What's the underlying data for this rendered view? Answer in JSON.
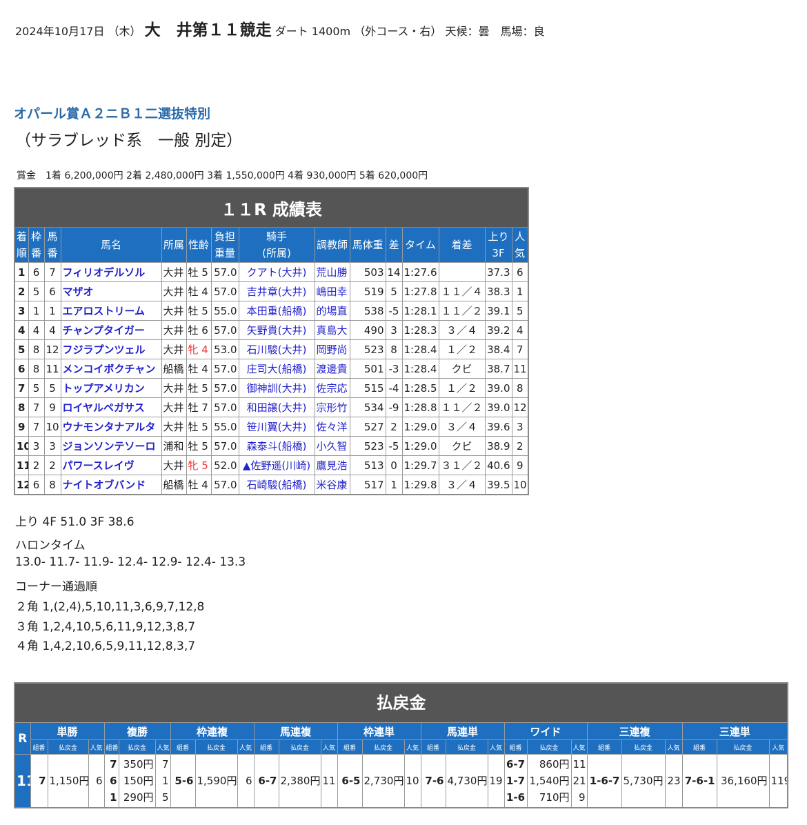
{
  "header": {
    "date": "2024年10月17日 （木）",
    "track_race": "大　井第１１競走",
    "course": "ダート 1400m （外コース・右） 天候：曇　馬場：良"
  },
  "race": {
    "name": "オパール賞Ａ２ニＢ１二選抜特別",
    "class": "（サラブレッド系　一般 別定）",
    "prize": "賞金　1着 6,200,000円  2着 2,480,000円  3着 1,550,000円  4着 930,000円  5着 620,000円"
  },
  "results": {
    "title": "１１R 成績表",
    "headers": [
      "着\n順",
      "枠\n番",
      "馬\n番",
      "馬名",
      "所属",
      "性齢",
      "負担\n重量",
      "騎手\n(所属)",
      "調教師",
      "馬体重",
      "差",
      "タイム",
      "着差",
      "上り\n3F",
      "人\n気"
    ],
    "rows": [
      [
        "1",
        "6",
        "7",
        "フィリオデルソル",
        "大井",
        "牡 5",
        "57.0",
        "クアト(大井)",
        "荒山勝",
        "503",
        "14",
        "1:27.6",
        "",
        "37.3",
        "6"
      ],
      [
        "2",
        "5",
        "6",
        "マザオ",
        "大井",
        "牡 4",
        "57.0",
        "吉井章(大井)",
        "嶋田幸",
        "519",
        "5",
        "1:27.8",
        "１１／４",
        "38.3",
        "1"
      ],
      [
        "3",
        "1",
        "1",
        "エアロストリーム",
        "大井",
        "牡 5",
        "55.0",
        "本田重(船橋)",
        "的場直",
        "538",
        "-5",
        "1:28.1",
        "１１／２",
        "39.1",
        "5"
      ],
      [
        "4",
        "4",
        "4",
        "チャンプタイガー",
        "大井",
        "牡 6",
        "57.0",
        "矢野貴(大井)",
        "真島大",
        "490",
        "3",
        "1:28.3",
        "３／４",
        "39.2",
        "4"
      ],
      [
        "5",
        "8",
        "12",
        "フジラプンツェル",
        "大井",
        "牝 4",
        "53.0",
        "石川駿(大井)",
        "岡野尚",
        "523",
        "8",
        "1:28.4",
        "１／２",
        "38.4",
        "7"
      ],
      [
        "6",
        "8",
        "11",
        "メンコイボクチャン",
        "船橋",
        "牡 4",
        "57.0",
        "庄司大(船橋)",
        "渡邊貴",
        "501",
        "-3",
        "1:28.4",
        "クビ",
        "38.7",
        "11"
      ],
      [
        "7",
        "5",
        "5",
        "トップアメリカン",
        "大井",
        "牡 5",
        "57.0",
        "御神訓(大井)",
        "佐宗応",
        "515",
        "-4",
        "1:28.5",
        "１／２",
        "39.0",
        "8"
      ],
      [
        "8",
        "7",
        "9",
        "ロイヤルペガサス",
        "大井",
        "牡 7",
        "57.0",
        "和田譲(大井)",
        "宗形竹",
        "534",
        "-9",
        "1:28.8",
        "１１／２",
        "39.0",
        "12"
      ],
      [
        "9",
        "7",
        "10",
        "ウナモンタナアルタ",
        "大井",
        "牡 5",
        "55.0",
        "笹川翼(大井)",
        "佐々洋",
        "527",
        "2",
        "1:29.0",
        "３／４",
        "39.6",
        "3"
      ],
      [
        "10",
        "3",
        "3",
        "ジョンソンテソーロ",
        "浦和",
        "牡 5",
        "57.0",
        "森泰斗(船橋)",
        "小久智",
        "523",
        "-5",
        "1:29.0",
        "クビ",
        "38.9",
        "2"
      ],
      [
        "11",
        "2",
        "2",
        "パワースレイヴ",
        "大井",
        "牝 5",
        "52.0",
        "▲佐野遥(川崎)",
        "鷹見浩",
        "513",
        "0",
        "1:29.7",
        "３１／２",
        "40.6",
        "9"
      ],
      [
        "12",
        "6",
        "8",
        "ナイトオブバンド",
        "船橋",
        "牡 4",
        "57.0",
        "石崎駿(船橋)",
        "米谷康",
        "517",
        "1",
        "1:29.8",
        "３／４",
        "39.5",
        "10"
      ]
    ]
  },
  "agari": "上り 4F 51.0 3F 38.6",
  "furlong": {
    "label": "ハロンタイム",
    "value": "13.0- 11.7- 11.9- 12.4- 12.9- 12.4- 13.3"
  },
  "corners": {
    "label": "コーナー通過順",
    "lines": [
      "２角 1,(2,4),5,10,11,3,6,9,7,12,8",
      "３角 1,2,4,10,5,6,11,9,12,3,8,7",
      "４角 1,4,2,10,6,5,9,11,12,8,3,7"
    ]
  },
  "payout": {
    "title": "払戻金",
    "r_label": "R",
    "race": "11",
    "sub": [
      "組番",
      "払戻金",
      "人気"
    ],
    "groups": [
      {
        "name": "単勝",
        "combo": [
          "7"
        ],
        "pay": [
          "1,150円"
        ],
        "pop": [
          "6"
        ]
      },
      {
        "name": "複勝",
        "combo": [
          "7",
          "6",
          "1"
        ],
        "pay": [
          "350円",
          "150円",
          "290円"
        ],
        "pop": [
          "7",
          "1",
          "5"
        ]
      },
      {
        "name": "枠連複",
        "combo": [
          "5-6"
        ],
        "pay": [
          "1,590円"
        ],
        "pop": [
          "6"
        ]
      },
      {
        "name": "馬連複",
        "combo": [
          "6-7"
        ],
        "pay": [
          "2,380円"
        ],
        "pop": [
          "11"
        ]
      },
      {
        "name": "枠連単",
        "combo": [
          "6-5"
        ],
        "pay": [
          "2,730円"
        ],
        "pop": [
          "10"
        ]
      },
      {
        "name": "馬連単",
        "combo": [
          "7-6"
        ],
        "pay": [
          "4,730円"
        ],
        "pop": [
          "19"
        ]
      },
      {
        "name": "ワイド",
        "combo": [
          "6-7",
          "1-7",
          "1-6"
        ],
        "pay": [
          "860円",
          "1,540円",
          "710円"
        ],
        "pop": [
          "11",
          "21",
          "9"
        ]
      },
      {
        "name": "三連複",
        "combo": [
          "1-6-7"
        ],
        "pay": [
          "5,730円"
        ],
        "pop": [
          "23"
        ]
      },
      {
        "name": "三連単",
        "combo": [
          "7-6-1"
        ],
        "pay": [
          "36,160円"
        ],
        "pop": [
          "119"
        ]
      }
    ]
  },
  "colors": {
    "header_blue": "#1e6fbf",
    "title_gray": "#555555",
    "link": "#2222cc",
    "mare_red": "#ee3333",
    "race_name": "#2a6aa8"
  }
}
